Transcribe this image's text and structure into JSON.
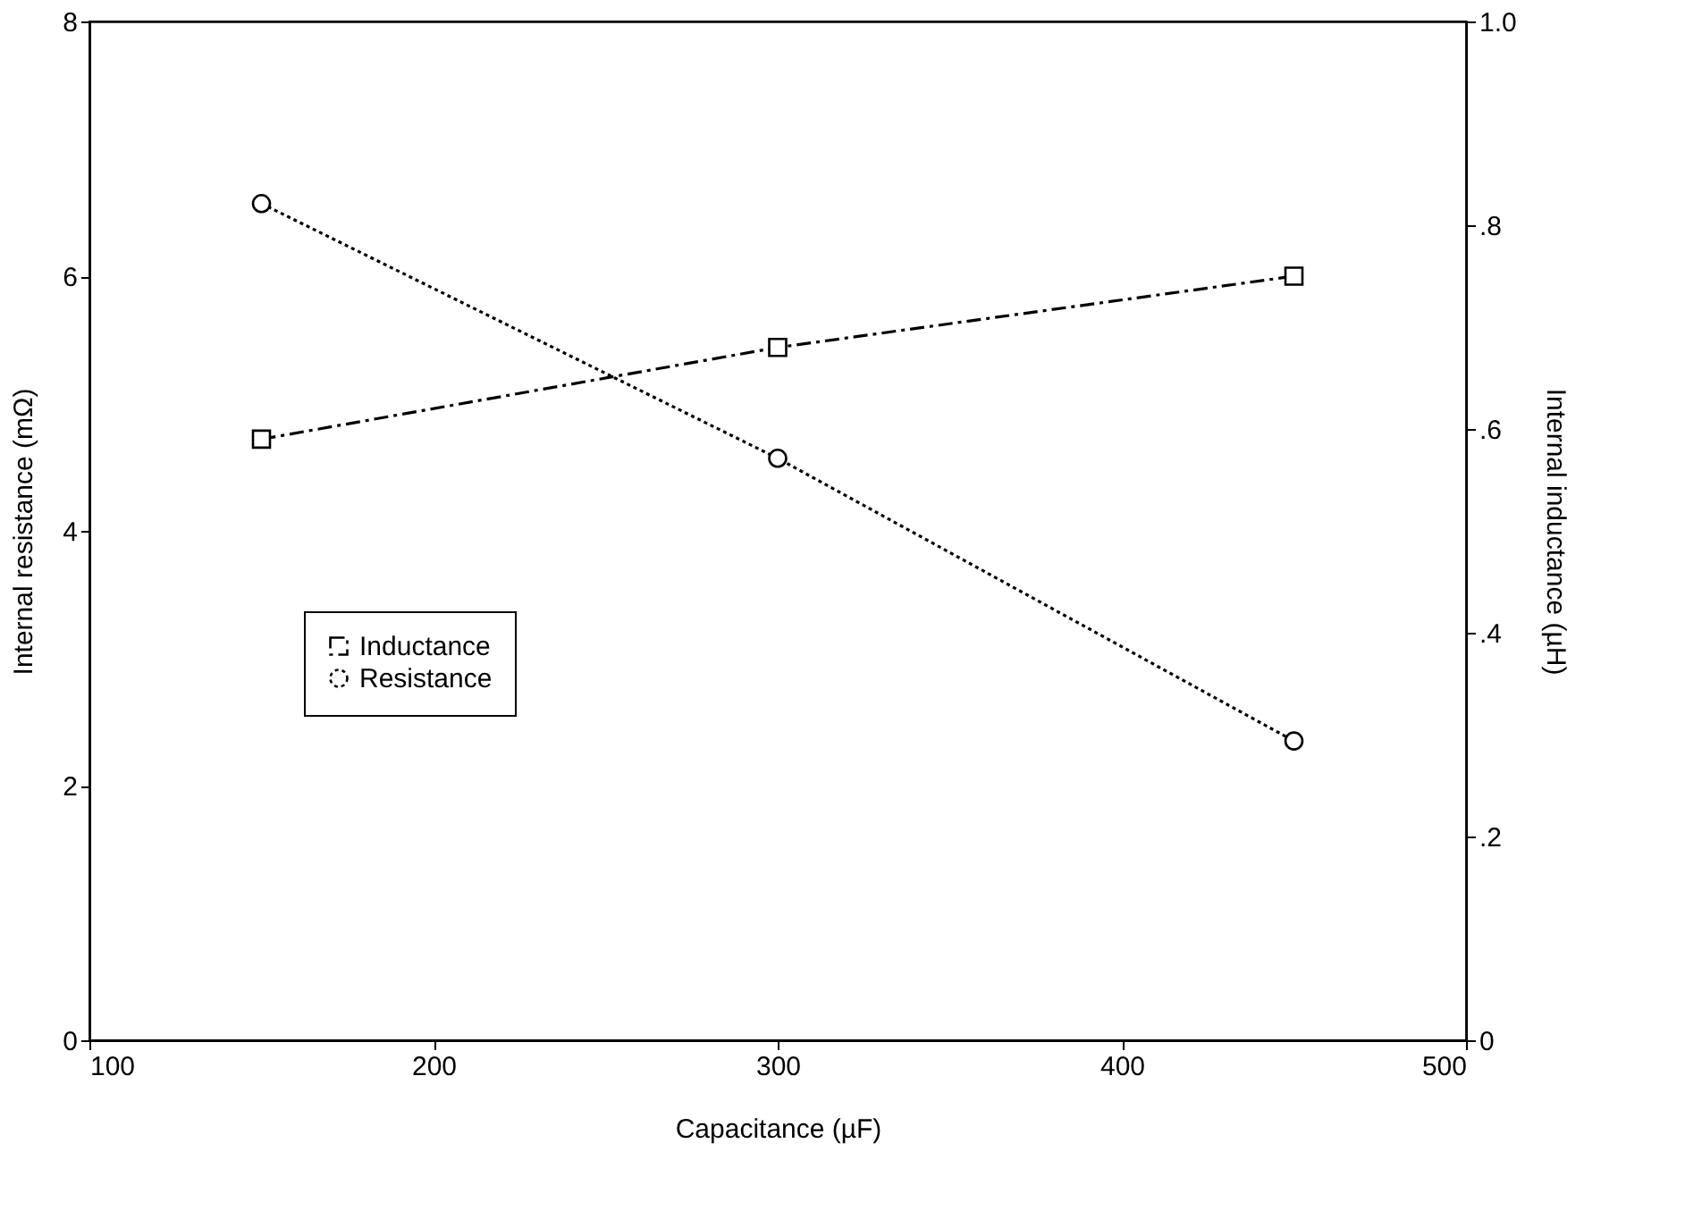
{
  "chart_data": {
    "type": "line",
    "xlabel": "Capacitance (µF)",
    "ylabel": "Internal resistance (mΩ)",
    "y2label": "Internal inductance (µH)",
    "x": [
      150,
      300,
      450
    ],
    "series": [
      {
        "name": "Inductance",
        "color": "#000000",
        "values": [
          0.59,
          0.68,
          0.75
        ],
        "axis": "y2",
        "marker": "square",
        "line_style": "dashed"
      },
      {
        "name": "Resistance",
        "color": "#000000",
        "values": [
          6.57,
          4.57,
          2.35
        ],
        "marker": "circle",
        "line_style": "dotted"
      }
    ],
    "xlim": [
      100,
      500
    ],
    "xticks": [
      100,
      200,
      300,
      400,
      500
    ],
    "ylim": [
      0,
      8
    ],
    "yticks": [
      0,
      2,
      4,
      6,
      8
    ],
    "y2lim": [
      0,
      1
    ],
    "y2ticks": [
      0,
      {
        "value": 0.2,
        "label": ".2"
      },
      {
        "value": 0.4,
        "label": ".4"
      },
      {
        "value": 0.6,
        "label": ".6"
      },
      {
        "value": 0.8,
        "label": ".8"
      },
      {
        "value": 1,
        "label": "1.0"
      }
    ],
    "grid": false,
    "legend": "bottom left"
  }
}
